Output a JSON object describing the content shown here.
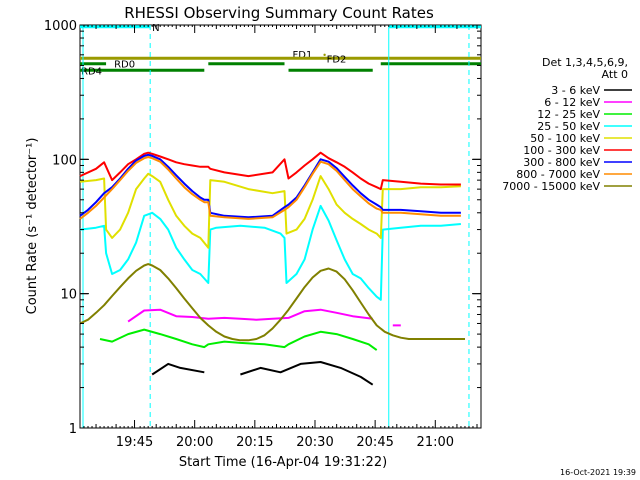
{
  "chart_data": {
    "type": "line",
    "title": "RHESSI Observing Summary Count Rates",
    "xlabel": "Start Time (16-Apr-04 19:31:22)",
    "ylabel": "Count Rate (s⁻¹ detector⁻¹)",
    "y_scale": "log",
    "ylim": [
      1,
      1000
    ],
    "xlim_minutes": [
      0,
      100
    ],
    "x_tick_labels": [
      "19:45",
      "20:00",
      "20:15",
      "20:30",
      "20:45",
      "21:00"
    ],
    "x_ticks_minutes": [
      13.6,
      28.6,
      43.6,
      58.6,
      73.6,
      88.6
    ],
    "y_tick_labels": [
      "1",
      "10",
      "100",
      "1000"
    ],
    "y_ticks": [
      1,
      10,
      100,
      1000
    ],
    "legend_header": [
      "Det 1,3,4,5,6,9,",
      "Att 0"
    ],
    "footer_timestamp": "16-Oct-2021 19:39",
    "flags": [
      {
        "label": "N",
        "color": "#00ffff",
        "level": 970,
        "segments": [
          [
            0,
            17.5
          ],
          [
            77,
            100
          ]
        ]
      },
      {
        "label": "FD1",
        "color": "#9a9a00",
        "level": 610,
        "marker_x": 61,
        "segments": []
      },
      {
        "label": "FD2",
        "color": "#9a9a00",
        "level": 565,
        "segments": [
          [
            0,
            100
          ]
        ]
      },
      {
        "label": "RD0",
        "color": "#008000",
        "level": 515,
        "segments": [
          [
            0,
            6.5
          ],
          [
            32,
            51
          ],
          [
            75,
            100
          ]
        ]
      },
      {
        "label": "RD4",
        "color": "#008000",
        "level": 460,
        "segments": [
          [
            0,
            31
          ],
          [
            52,
            73
          ]
        ]
      }
    ],
    "saa_lines_minutes": [
      17.5,
      97
    ],
    "night_lines_minutes": [
      77
    ],
    "series": [
      {
        "name": "3 - 6 keV",
        "color": "#000000",
        "x": [
          0,
          17,
          18,
          22,
          25,
          31,
          33,
          40,
          45,
          50,
          55,
          60,
          65,
          70,
          73,
          74,
          76
        ],
        "y": [
          null,
          null,
          2.5,
          3.0,
          2.8,
          2.6,
          null,
          2.5,
          2.8,
          2.6,
          3.0,
          3.1,
          2.8,
          2.4,
          2.1,
          null,
          null
        ]
      },
      {
        "name": "6 - 12 keV",
        "color": "#ff00ff",
        "x": [
          12,
          16,
          20,
          24,
          28,
          32,
          36,
          40,
          44,
          48,
          52,
          56,
          60,
          64,
          68,
          73,
          74,
          78,
          80,
          84
        ],
        "y": [
          6.2,
          7.5,
          7.6,
          6.8,
          6.7,
          6.5,
          6.6,
          6.5,
          6.4,
          6.5,
          6.6,
          7.4,
          7.6,
          7.2,
          6.8,
          6.5,
          null,
          5.8,
          5.8,
          null
        ]
      },
      {
        "name": "12 - 25 keV",
        "color": "#00ee00",
        "x": [
          5,
          8,
          12,
          16,
          20,
          24,
          28,
          31,
          32,
          36,
          40,
          46,
          51,
          52,
          56,
          60,
          64,
          68,
          72,
          74,
          76,
          80,
          84
        ],
        "y": [
          4.6,
          4.4,
          5.0,
          5.4,
          5.0,
          4.6,
          4.2,
          4.0,
          4.2,
          4.4,
          4.3,
          4.2,
          4.0,
          4.2,
          4.8,
          5.2,
          5.0,
          4.6,
          4.2,
          3.8,
          null,
          null,
          null
        ]
      },
      {
        "name": "25 - 50 keV",
        "color": "#00ffff",
        "x": [
          0,
          4,
          6,
          6.5,
          8,
          10,
          12,
          14,
          16,
          18,
          20,
          22,
          24,
          26,
          28,
          30,
          32,
          32.5,
          34,
          40,
          46,
          50,
          51,
          51.5,
          54,
          56,
          58,
          60,
          62,
          64,
          66,
          68,
          70,
          72,
          74,
          75,
          75.5,
          80,
          85,
          90,
          95
        ],
        "y": [
          30,
          31,
          32,
          20,
          14,
          15,
          18,
          24,
          38,
          40,
          36,
          30,
          22,
          18,
          15,
          14,
          12,
          30,
          31,
          32,
          31,
          28,
          26,
          12,
          14,
          18,
          30,
          45,
          35,
          25,
          18,
          14,
          13,
          11,
          9.5,
          9.0,
          30,
          31,
          32,
          32,
          33
        ]
      },
      {
        "name": "50 - 100 keV",
        "color": "#e0e000",
        "x": [
          0,
          4,
          6,
          6.5,
          8,
          10,
          12,
          14,
          16,
          17,
          18,
          20,
          22,
          24,
          26,
          28,
          30,
          32,
          32.5,
          36,
          42,
          48,
          51,
          51.5,
          54,
          56,
          58,
          60,
          62,
          64,
          66,
          68,
          70,
          72,
          74,
          75,
          75.5,
          80,
          85,
          90,
          95
        ],
        "y": [
          68,
          70,
          72,
          30,
          26,
          30,
          40,
          60,
          72,
          78,
          75,
          68,
          50,
          38,
          32,
          28,
          26,
          22,
          70,
          68,
          60,
          56,
          58,
          28,
          30,
          36,
          50,
          75,
          60,
          46,
          40,
          36,
          33,
          30,
          28,
          26,
          60,
          60,
          62,
          62,
          63
        ]
      },
      {
        "name": "100 - 300 keV",
        "color": "#ff0000",
        "x": [
          0,
          4,
          6,
          8,
          10,
          12,
          14,
          16,
          17,
          18,
          20,
          22,
          24,
          26,
          28,
          30,
          31,
          32,
          32.5,
          36,
          42,
          48,
          51,
          52,
          54,
          56,
          58,
          60,
          62,
          64,
          66,
          68,
          70,
          72,
          74,
          75,
          75.5,
          80,
          85,
          90,
          95
        ],
        "y": [
          75,
          85,
          95,
          70,
          80,
          92,
          100,
          110,
          112,
          110,
          105,
          100,
          95,
          92,
          90,
          88,
          88,
          88,
          85,
          80,
          75,
          80,
          100,
          72,
          80,
          90,
          100,
          112,
          102,
          95,
          88,
          80,
          72,
          66,
          62,
          60,
          70,
          68,
          66,
          65,
          65
        ]
      },
      {
        "name": "300 - 800 keV",
        "color": "#0000ff",
        "x": [
          0,
          2,
          4,
          6,
          8,
          10,
          12,
          14,
          16,
          17,
          18,
          20,
          22,
          24,
          26,
          28,
          30,
          31,
          32,
          32.5,
          36,
          42,
          48,
          51,
          52,
          54,
          56,
          58,
          60,
          62,
          64,
          66,
          68,
          70,
          72,
          74,
          75,
          75.5,
          80,
          85,
          90,
          95
        ],
        "y": [
          38,
          42,
          48,
          56,
          62,
          72,
          85,
          98,
          106,
          108,
          106,
          100,
          88,
          76,
          66,
          58,
          52,
          50,
          50,
          40,
          38,
          37,
          38,
          44,
          46,
          52,
          64,
          80,
          100,
          96,
          86,
          74,
          64,
          56,
          50,
          46,
          44,
          42,
          42,
          41,
          40,
          40
        ]
      },
      {
        "name": "800 - 7000 keV",
        "color": "#ff8c00",
        "x": [
          0,
          2,
          4,
          6,
          8,
          10,
          12,
          14,
          16,
          17,
          18,
          20,
          22,
          24,
          26,
          28,
          30,
          31,
          32,
          32.5,
          36,
          42,
          48,
          51,
          52,
          54,
          56,
          58,
          60,
          62,
          64,
          66,
          68,
          70,
          72,
          74,
          75,
          75.5,
          80,
          85,
          90,
          95
        ],
        "y": [
          36,
          40,
          45,
          52,
          60,
          70,
          82,
          94,
          102,
          104,
          102,
          96,
          84,
          72,
          62,
          55,
          50,
          48,
          48,
          38,
          37,
          36,
          37,
          42,
          44,
          50,
          62,
          78,
          96,
          92,
          82,
          70,
          60,
          53,
          47,
          43,
          42,
          40,
          40,
          39,
          38,
          38
        ]
      },
      {
        "name": "7000 - 15000 keV",
        "color": "#808000",
        "x": [
          0,
          2,
          4,
          6,
          8,
          10,
          12,
          14,
          16,
          17,
          18,
          20,
          22,
          24,
          26,
          28,
          30,
          32,
          34,
          36,
          38,
          40,
          42,
          44,
          46,
          48,
          50,
          52,
          54,
          56,
          58,
          60,
          62,
          64,
          66,
          68,
          70,
          72,
          74,
          76,
          78,
          80,
          82,
          84,
          86,
          88,
          90,
          92,
          94,
          96
        ],
        "y": [
          6.0,
          6.4,
          7.2,
          8.2,
          9.6,
          11.2,
          13.0,
          14.8,
          16.2,
          16.6,
          16.2,
          15.0,
          13.0,
          11.0,
          9.2,
          7.8,
          6.6,
          5.8,
          5.2,
          4.8,
          4.6,
          4.5,
          4.5,
          4.6,
          4.9,
          5.5,
          6.4,
          7.6,
          9.2,
          11.2,
          13.2,
          14.8,
          15.4,
          14.6,
          12.8,
          10.6,
          8.6,
          7.0,
          5.8,
          5.2,
          4.9,
          4.7,
          4.6,
          4.6,
          4.6,
          4.6,
          4.6,
          4.6,
          4.6,
          4.6
        ]
      }
    ]
  }
}
